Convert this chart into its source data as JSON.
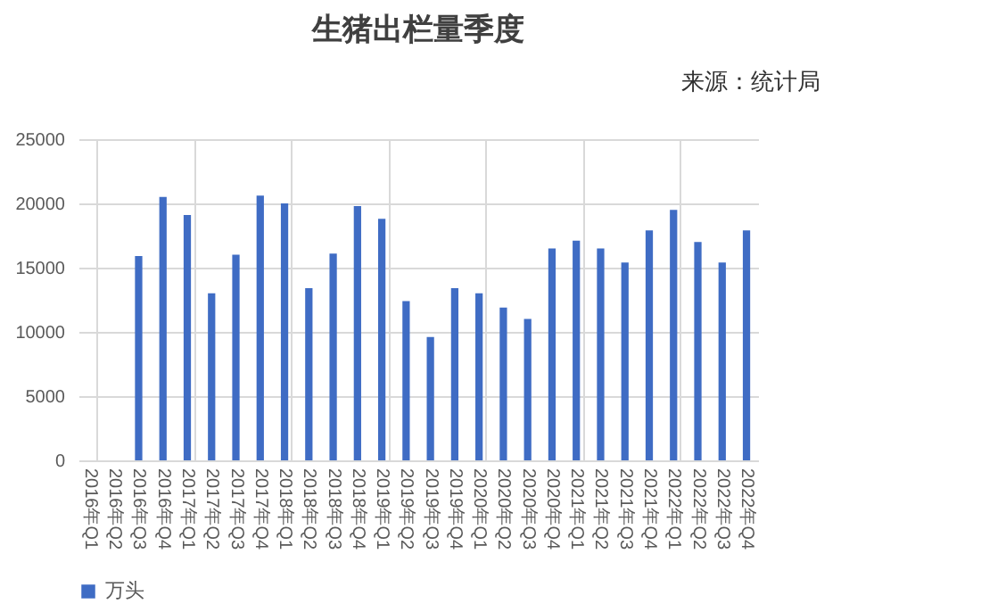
{
  "chart_data": {
    "type": "bar",
    "title": "生猪出栏量季度",
    "annotations": [
      "来源：统计局"
    ],
    "categories": [
      "2016年Q1",
      "2016年Q2",
      "2016年Q3",
      "2016年Q4",
      "2017年Q1",
      "2017年Q2",
      "2017年Q3",
      "2017年Q4",
      "2018年Q1",
      "2018年Q2",
      "2018年Q3",
      "2018年Q4",
      "2019年Q1",
      "2019年Q2",
      "2019年Q3",
      "2019年Q4",
      "2020年Q1",
      "2020年Q2",
      "2020年Q3",
      "2020年Q4",
      "2021年Q1",
      "2021年Q2",
      "2021年Q3",
      "2021年Q4",
      "2022年Q1",
      "2022年Q2",
      "2022年Q3",
      "2022年Q4"
    ],
    "series": [
      {
        "name": "万头",
        "color": "#3f6cc4",
        "values": [
          null,
          null,
          15900,
          20500,
          19100,
          13000,
          16000,
          20600,
          20000,
          13400,
          16100,
          19800,
          18800,
          12400,
          9600,
          13400,
          13000,
          11900,
          11000,
          16500,
          17100,
          16500,
          15400,
          17900,
          19500,
          17000,
          15400,
          17900
        ]
      }
    ],
    "ylim": [
      0,
      25000
    ],
    "yticks": [
      0,
      5000,
      10000,
      15000,
      20000,
      25000
    ],
    "grid": true,
    "legend": "bottom"
  }
}
